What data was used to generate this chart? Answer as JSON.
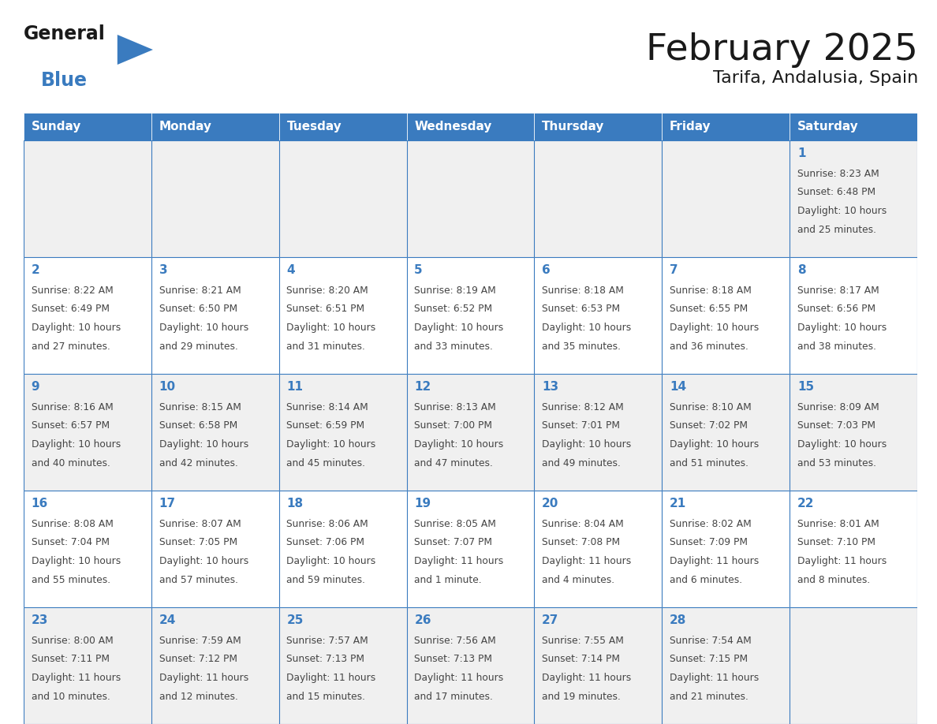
{
  "title": "February 2025",
  "subtitle": "Tarifa, Andalusia, Spain",
  "header_bg_color": "#3a7bbf",
  "header_text_color": "#ffffff",
  "cell_bg_even": "#f0f0f0",
  "cell_bg_odd": "#ffffff",
  "grid_line_color": "#3a7bbf",
  "day_number_color": "#3a7bbf",
  "cell_text_color": "#444444",
  "days_of_week": [
    "Sunday",
    "Monday",
    "Tuesday",
    "Wednesday",
    "Thursday",
    "Friday",
    "Saturday"
  ],
  "calendar_data": [
    [
      null,
      null,
      null,
      null,
      null,
      null,
      {
        "day": 1,
        "sunrise": "8:23 AM",
        "sunset": "6:48 PM",
        "daylight_line1": "10 hours",
        "daylight_line2": "and 25 minutes."
      }
    ],
    [
      {
        "day": 2,
        "sunrise": "8:22 AM",
        "sunset": "6:49 PM",
        "daylight_line1": "10 hours",
        "daylight_line2": "and 27 minutes."
      },
      {
        "day": 3,
        "sunrise": "8:21 AM",
        "sunset": "6:50 PM",
        "daylight_line1": "10 hours",
        "daylight_line2": "and 29 minutes."
      },
      {
        "day": 4,
        "sunrise": "8:20 AM",
        "sunset": "6:51 PM",
        "daylight_line1": "10 hours",
        "daylight_line2": "and 31 minutes."
      },
      {
        "day": 5,
        "sunrise": "8:19 AM",
        "sunset": "6:52 PM",
        "daylight_line1": "10 hours",
        "daylight_line2": "and 33 minutes."
      },
      {
        "day": 6,
        "sunrise": "8:18 AM",
        "sunset": "6:53 PM",
        "daylight_line1": "10 hours",
        "daylight_line2": "and 35 minutes."
      },
      {
        "day": 7,
        "sunrise": "8:18 AM",
        "sunset": "6:55 PM",
        "daylight_line1": "10 hours",
        "daylight_line2": "and 36 minutes."
      },
      {
        "day": 8,
        "sunrise": "8:17 AM",
        "sunset": "6:56 PM",
        "daylight_line1": "10 hours",
        "daylight_line2": "and 38 minutes."
      }
    ],
    [
      {
        "day": 9,
        "sunrise": "8:16 AM",
        "sunset": "6:57 PM",
        "daylight_line1": "10 hours",
        "daylight_line2": "and 40 minutes."
      },
      {
        "day": 10,
        "sunrise": "8:15 AM",
        "sunset": "6:58 PM",
        "daylight_line1": "10 hours",
        "daylight_line2": "and 42 minutes."
      },
      {
        "day": 11,
        "sunrise": "8:14 AM",
        "sunset": "6:59 PM",
        "daylight_line1": "10 hours",
        "daylight_line2": "and 45 minutes."
      },
      {
        "day": 12,
        "sunrise": "8:13 AM",
        "sunset": "7:00 PM",
        "daylight_line1": "10 hours",
        "daylight_line2": "and 47 minutes."
      },
      {
        "day": 13,
        "sunrise": "8:12 AM",
        "sunset": "7:01 PM",
        "daylight_line1": "10 hours",
        "daylight_line2": "and 49 minutes."
      },
      {
        "day": 14,
        "sunrise": "8:10 AM",
        "sunset": "7:02 PM",
        "daylight_line1": "10 hours",
        "daylight_line2": "and 51 minutes."
      },
      {
        "day": 15,
        "sunrise": "8:09 AM",
        "sunset": "7:03 PM",
        "daylight_line1": "10 hours",
        "daylight_line2": "and 53 minutes."
      }
    ],
    [
      {
        "day": 16,
        "sunrise": "8:08 AM",
        "sunset": "7:04 PM",
        "daylight_line1": "10 hours",
        "daylight_line2": "and 55 minutes."
      },
      {
        "day": 17,
        "sunrise": "8:07 AM",
        "sunset": "7:05 PM",
        "daylight_line1": "10 hours",
        "daylight_line2": "and 57 minutes."
      },
      {
        "day": 18,
        "sunrise": "8:06 AM",
        "sunset": "7:06 PM",
        "daylight_line1": "10 hours",
        "daylight_line2": "and 59 minutes."
      },
      {
        "day": 19,
        "sunrise": "8:05 AM",
        "sunset": "7:07 PM",
        "daylight_line1": "11 hours",
        "daylight_line2": "and 1 minute."
      },
      {
        "day": 20,
        "sunrise": "8:04 AM",
        "sunset": "7:08 PM",
        "daylight_line1": "11 hours",
        "daylight_line2": "and 4 minutes."
      },
      {
        "day": 21,
        "sunrise": "8:02 AM",
        "sunset": "7:09 PM",
        "daylight_line1": "11 hours",
        "daylight_line2": "and 6 minutes."
      },
      {
        "day": 22,
        "sunrise": "8:01 AM",
        "sunset": "7:10 PM",
        "daylight_line1": "11 hours",
        "daylight_line2": "and 8 minutes."
      }
    ],
    [
      {
        "day": 23,
        "sunrise": "8:00 AM",
        "sunset": "7:11 PM",
        "daylight_line1": "11 hours",
        "daylight_line2": "and 10 minutes."
      },
      {
        "day": 24,
        "sunrise": "7:59 AM",
        "sunset": "7:12 PM",
        "daylight_line1": "11 hours",
        "daylight_line2": "and 12 minutes."
      },
      {
        "day": 25,
        "sunrise": "7:57 AM",
        "sunset": "7:13 PM",
        "daylight_line1": "11 hours",
        "daylight_line2": "and 15 minutes."
      },
      {
        "day": 26,
        "sunrise": "7:56 AM",
        "sunset": "7:13 PM",
        "daylight_line1": "11 hours",
        "daylight_line2": "and 17 minutes."
      },
      {
        "day": 27,
        "sunrise": "7:55 AM",
        "sunset": "7:14 PM",
        "daylight_line1": "11 hours",
        "daylight_line2": "and 19 minutes."
      },
      {
        "day": 28,
        "sunrise": "7:54 AM",
        "sunset": "7:15 PM",
        "daylight_line1": "11 hours",
        "daylight_line2": "and 21 minutes."
      },
      null
    ]
  ]
}
